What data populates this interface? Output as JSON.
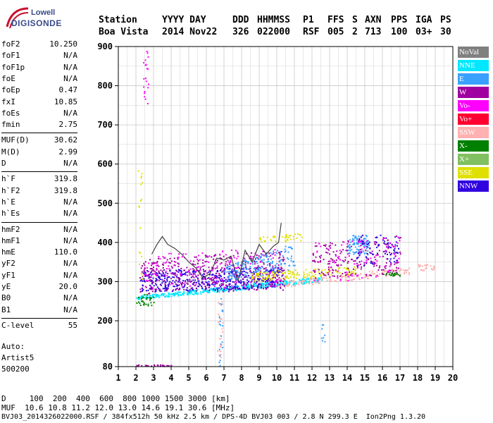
{
  "logo": {
    "line1": "Lowell",
    "line2": "DIGISONDE"
  },
  "header": {
    "labels": [
      {
        "label": "Station",
        "value": "Boa Vista"
      },
      {
        "label": "YYYY DAY",
        "value": "2014 Nov22"
      },
      {
        "label": "DDD",
        "value": "326"
      },
      {
        "label": "HHMMSS",
        "value": "022000"
      },
      {
        "label": "P1",
        "value": "RSF"
      },
      {
        "label": "FFS",
        "value": "005"
      },
      {
        "label": "S",
        "value": "2"
      },
      {
        "label": "AXN",
        "value": "713"
      },
      {
        "label": "PPS",
        "value": "100"
      },
      {
        "label": "IGA",
        "value": "03+"
      },
      {
        "label": "PS",
        "value": "30"
      }
    ]
  },
  "params": [
    {
      "name": "foF2",
      "value": "10.250"
    },
    {
      "name": "foF1",
      "value": "N/A"
    },
    {
      "name": "foF1p",
      "value": "N/A"
    },
    {
      "name": "foE",
      "value": "N/A"
    },
    {
      "name": "foEp",
      "value": "0.47"
    },
    {
      "name": "fxI",
      "value": "10.85"
    },
    {
      "name": "foEs",
      "value": "N/A"
    },
    {
      "name": "fmin",
      "value": "2.75"
    },
    {
      "name": "MUF(D)",
      "value": "30.62"
    },
    {
      "name": "M(D)",
      "value": "2.99"
    },
    {
      "name": "D",
      "value": "N/A"
    },
    {
      "name": "h`F",
      "value": "319.8"
    },
    {
      "name": "h`F2",
      "value": "319.8"
    },
    {
      "name": "h`E",
      "value": "N/A"
    },
    {
      "name": "h`Es",
      "value": "N/A"
    },
    {
      "name": "hmF2",
      "value": "N/A"
    },
    {
      "name": "hmF1",
      "value": "N/A"
    },
    {
      "name": "hmE",
      "value": "110.0"
    },
    {
      "name": "yF2",
      "value": "N/A"
    },
    {
      "name": "yF1",
      "value": "N/A"
    },
    {
      "name": "yE",
      "value": "20.0"
    },
    {
      "name": "B0",
      "value": "N/A"
    },
    {
      "name": "B1",
      "value": "N/A"
    },
    {
      "name": "C-level",
      "value": "55"
    }
  ],
  "misc": {
    "auto": "Auto:",
    "artist": "Artist5",
    "version": "500200"
  },
  "legend": [
    {
      "label": "NoVal",
      "color": "#808080"
    },
    {
      "label": "NNE",
      "color": "#00e8ff"
    },
    {
      "label": "E",
      "color": "#3aa0ff"
    },
    {
      "label": "W",
      "color": "#a000a0"
    },
    {
      "label": "Vo-",
      "color": "#ff00ff"
    },
    {
      "label": "Vo+",
      "color": "#ff0030"
    },
    {
      "label": "SSW",
      "color": "#ffb0b0"
    },
    {
      "label": "X-",
      "color": "#008000"
    },
    {
      "label": "X+",
      "color": "#80c060"
    },
    {
      "label": "SSE",
      "color": "#e0e000"
    },
    {
      "label": "NNW",
      "color": "#3000e0"
    }
  ],
  "bottom": {
    "line1": "D     100  200  400  600  800 1000 1500 3000 [km]",
    "line2": "MUF  10.6 10.8 11.2 12.0 13.0 14.6 19.1 30.6 [MHz]",
    "line3": "BVJ03_2014326022000.RSF / 384fx512h 50 kHz 2.5 km / DPS-4D BVJ03 003 / 2.8 N 299.3 E  Ion2Png 1.3.20"
  },
  "chart_data": {
    "type": "scatter",
    "xlim": [
      1,
      20
    ],
    "ylim": [
      80,
      900
    ],
    "xticks": [
      1,
      2,
      3,
      4,
      5,
      6,
      7,
      8,
      9,
      10,
      11,
      12,
      13,
      14,
      15,
      16,
      17,
      18,
      19,
      20
    ],
    "yticks": [
      80,
      200,
      300,
      400,
      500,
      600,
      700,
      800,
      900
    ],
    "grid": true,
    "trace": {
      "name": "h'F trace",
      "x": [
        2.9,
        3.2,
        3.5,
        3.8,
        4.2,
        4.6,
        5.0,
        5.4,
        5.8,
        6.2,
        6.6,
        7.0,
        7.4,
        7.8,
        8.2,
        8.6,
        9.0,
        9.4,
        9.8,
        10.1,
        10.25
      ],
      "y": [
        370,
        395,
        415,
        395,
        385,
        370,
        350,
        335,
        310,
        320,
        360,
        355,
        365,
        300,
        380,
        350,
        395,
        370,
        390,
        400,
        450
      ]
    },
    "echo_bands": [
      {
        "color": "#00e8ff",
        "x0": 2.0,
        "x1": 12.6,
        "y0a": 255,
        "y1a": 265,
        "y0b": 300,
        "y1b": 315,
        "n": 420
      },
      {
        "color": "#3000e0",
        "x0": 2.2,
        "x1": 10.3,
        "y0a": 275,
        "y1a": 330,
        "y0b": 285,
        "y1b": 340,
        "n": 520
      },
      {
        "color": "#a000a0",
        "x0": 2.2,
        "x1": 10.5,
        "y0a": 270,
        "y1a": 360,
        "y0b": 280,
        "y1b": 380,
        "n": 380
      },
      {
        "color": "#ff00ff",
        "x0": 2.4,
        "x1": 10.2,
        "y0a": 280,
        "y1a": 370,
        "y0b": 290,
        "y1b": 390,
        "n": 160
      },
      {
        "color": "#3aa0ff",
        "x0": 7.0,
        "x1": 11.0,
        "y0a": 300,
        "y1a": 340,
        "y0b": 330,
        "y1b": 400,
        "n": 180
      },
      {
        "color": "#ffb0b0",
        "x0": 10.0,
        "x1": 17.5,
        "y0a": 285,
        "y1a": 300,
        "y0b": 320,
        "y1b": 340,
        "n": 160
      },
      {
        "color": "#e0e000",
        "x0": 8.5,
        "x1": 14.5,
        "y0a": 300,
        "y1a": 325,
        "y0b": 320,
        "y1b": 340,
        "n": 150
      },
      {
        "color": "#e0e000",
        "x0": 9.0,
        "x1": 11.5,
        "y0a": 400,
        "y1a": 420,
        "y0b": 405,
        "y1b": 425,
        "n": 40
      },
      {
        "color": "#a000a0",
        "x0": 12.0,
        "x1": 17.0,
        "y0a": 310,
        "y1a": 400,
        "y0b": 320,
        "y1b": 420,
        "n": 200
      },
      {
        "color": "#3aa0ff",
        "x0": 14.0,
        "x1": 15.2,
        "y0a": 370,
        "y1a": 420,
        "y0b": 370,
        "y1b": 420,
        "n": 90
      },
      {
        "color": "#3000e0",
        "x0": 14.5,
        "x1": 17.0,
        "y0a": 340,
        "y1a": 420,
        "y0b": 350,
        "y1b": 420,
        "n": 80
      },
      {
        "color": "#ff00ff",
        "x0": 12.0,
        "x1": 17.0,
        "y0a": 300,
        "y1a": 400,
        "y0b": 310,
        "y1b": 420,
        "n": 80
      },
      {
        "color": "#008000",
        "x0": 2.0,
        "x1": 3.0,
        "y0a": 240,
        "y1a": 270,
        "y0b": 240,
        "y1b": 270,
        "n": 30
      },
      {
        "color": "#008000",
        "x0": 16.0,
        "x1": 17.0,
        "y0a": 315,
        "y1a": 325,
        "y0b": 315,
        "y1b": 325,
        "n": 20
      },
      {
        "color": "#ffb0b0",
        "x0": 18.0,
        "x1": 19.0,
        "y0a": 330,
        "y1a": 345,
        "y0b": 330,
        "y1b": 345,
        "n": 25
      },
      {
        "color": "#a000a0",
        "x0": 2.0,
        "x1": 4.0,
        "y0a": 82,
        "y1a": 86,
        "y0b": 82,
        "y1b": 86,
        "n": 30
      },
      {
        "color": "#ff00ff",
        "x0": 2.4,
        "x1": 2.7,
        "y0a": 750,
        "y1a": 890,
        "y0b": 750,
        "y1b": 890,
        "n": 20
      },
      {
        "color": "#e0e000",
        "x0": 2.1,
        "x1": 2.4,
        "y0a": 300,
        "y1a": 600,
        "y0b": 300,
        "y1b": 600,
        "n": 20
      },
      {
        "color": "#ffb0b0",
        "x0": 6.6,
        "x1": 6.9,
        "y0a": 100,
        "y1a": 260,
        "y0b": 100,
        "y1b": 260,
        "n": 30
      },
      {
        "color": "#3aa0ff",
        "x0": 6.7,
        "x1": 6.9,
        "y0a": 80,
        "y1a": 260,
        "y0b": 80,
        "y1b": 260,
        "n": 20
      },
      {
        "color": "#3aa0ff",
        "x0": 12.5,
        "x1": 12.7,
        "y0a": 140,
        "y1a": 200,
        "y0b": 140,
        "y1b": 200,
        "n": 8
      }
    ]
  }
}
